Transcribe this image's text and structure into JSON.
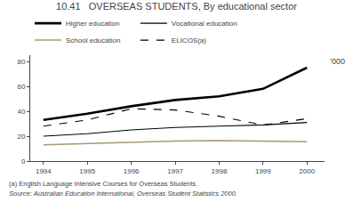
{
  "chart_data": {
    "type": "line",
    "title": "10.41   OVERSEAS STUDENTS, By educational sector",
    "ylabel": "’000",
    "annotations": [
      "(a) English Language Intensive Courses for Overseas Students.",
      "Source: Australian Education International, Overseas Student Statistics 2000."
    ],
    "x": [
      1994,
      1995,
      1996,
      1997,
      1998,
      1999,
      2000
    ],
    "series": [
      {
        "name": "Higher education",
        "color": "#000000",
        "line_style": "solid",
        "values": [
          33,
          38,
          44,
          49,
          52,
          58,
          75
        ]
      },
      {
        "name": "Vocational education",
        "color": "#000000",
        "line_style": "solid",
        "values": [
          20,
          22,
          25,
          27,
          28,
          29,
          31
        ]
      },
      {
        "name": "School education",
        "color": "#a89878",
        "line_style": "solid",
        "values": [
          13,
          14,
          15.5,
          16,
          16.5,
          16,
          15.5
        ]
      },
      {
        "name": "ELICOS(a)",
        "color": "#000000",
        "line_style": "dashed",
        "values": [
          28,
          33,
          42,
          41,
          36,
          29,
          34
        ]
      }
    ],
    "xlim": [
      1993.7,
      2000.4
    ],
    "xticks": [
      1994,
      1995,
      1996,
      1997,
      1998,
      1999,
      2000
    ],
    "ylim": [
      0,
      85
    ],
    "yticks": [
      0,
      20,
      40,
      60,
      80
    ],
    "grid": false,
    "legend": "top"
  }
}
